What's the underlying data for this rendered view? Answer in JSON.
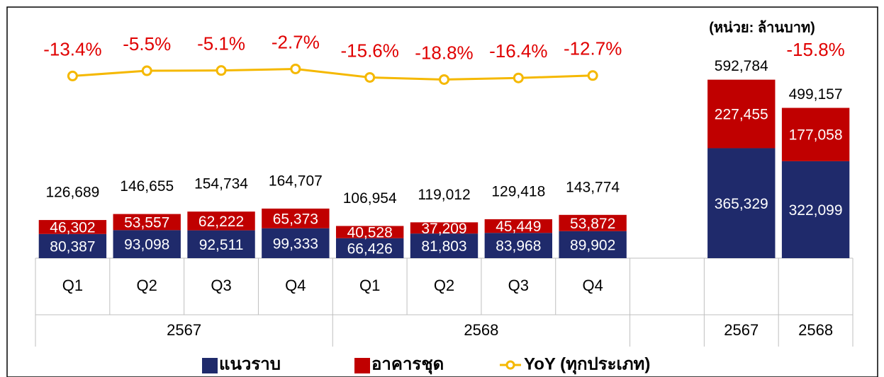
{
  "chart_data": {
    "type": "bar",
    "stacked": true,
    "unit_note": "(หน่วย: ล้านบาท)",
    "categories": [
      "Q1",
      "Q2",
      "Q3",
      "Q4",
      "Q1",
      "Q2",
      "Q3",
      "Q4",
      null,
      null,
      null
    ],
    "groups": [
      "2567",
      "2567",
      "2567",
      "2567",
      "2568",
      "2568",
      "2568",
      "2568",
      null,
      "2567",
      "2568"
    ],
    "ylim": [
      0,
      700000
    ],
    "y2lim": [
      -290,
      30
    ],
    "series": [
      {
        "name": "แนวราบ",
        "color": "#1f2a6b",
        "values": [
          80387,
          93098,
          92511,
          99333,
          66426,
          81803,
          83968,
          89902,
          null,
          365329,
          322099
        ],
        "value_labels": [
          "80,387",
          "93,098",
          "92,511",
          "99,333",
          "66,426",
          "81,803",
          "83,968",
          "89,902",
          null,
          "365,329",
          "322,099"
        ]
      },
      {
        "name": "อาคารชุด",
        "color": "#c00000",
        "values": [
          46302,
          53557,
          62222,
          65373,
          40528,
          37209,
          45449,
          53872,
          null,
          227455,
          177058
        ],
        "value_labels": [
          "46,302",
          "53,557",
          "62,222",
          "65,373",
          "40,528",
          "37,209",
          "45,449",
          "53,872",
          null,
          "227,455",
          "177,058"
        ]
      },
      {
        "name": "YoY (ทุกประเภท)",
        "type": "line",
        "axis": "y2",
        "color": "#f5b800",
        "values": [
          -13.4,
          -5.5,
          -5.1,
          -2.7,
          -15.6,
          -18.8,
          -16.4,
          -12.7,
          null,
          null,
          null
        ],
        "value_labels": [
          "-13.4%",
          "-5.5%",
          "-5.1%",
          "-2.7%",
          "-15.6%",
          "-18.8%",
          "-16.4%",
          "-12.7%",
          null,
          null,
          null
        ]
      }
    ],
    "totals": {
      "values": [
        126689,
        146655,
        154734,
        164707,
        106954,
        119012,
        129418,
        143774,
        null,
        592784,
        499157
      ],
      "value_labels": [
        "126,689",
        "146,655",
        "154,734",
        "164,707",
        "106,954",
        "119,012",
        "129,418",
        "143,774",
        null,
        "592,784",
        "499,157"
      ]
    },
    "annual_yoy": {
      "value": -15.8,
      "label": "-15.8%"
    }
  }
}
